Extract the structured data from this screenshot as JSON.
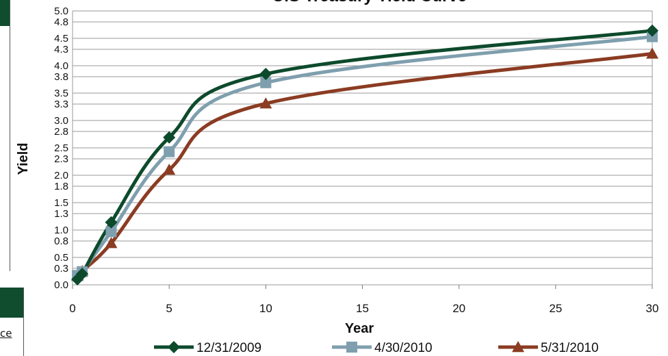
{
  "chart_data": {
    "type": "line",
    "title": "U.S Treasury Yield Curve",
    "xlabel": "Year",
    "ylabel": "Yield",
    "xlim": [
      0,
      30
    ],
    "ylim": [
      0.0,
      5.0
    ],
    "x_ticks": [
      0,
      5,
      10,
      15,
      20,
      25,
      30
    ],
    "y_ticks": [
      "0.0",
      "0.3",
      "0.5",
      "0.8",
      "1.0",
      "1.3",
      "1.5",
      "1.8",
      "2.0",
      "2.3",
      "2.5",
      "2.8",
      "3.0",
      "3.3",
      "3.5",
      "3.8",
      "4.0",
      "4.3",
      "4.5",
      "4.8",
      "5.0"
    ],
    "grid": "horizontal",
    "legend": "bottom",
    "series": [
      {
        "name": "12/31/2009",
        "color": "#0d4a2c",
        "marker": "diamond",
        "points": [
          [
            0.25,
            0.1
          ],
          [
            0.5,
            0.2
          ],
          [
            2,
            1.14
          ],
          [
            5,
            2.69
          ],
          [
            10,
            3.85
          ],
          [
            30,
            4.64
          ]
        ]
      },
      {
        "name": "4/30/2010",
        "color": "#7f9fae",
        "marker": "square",
        "points": [
          [
            0.25,
            0.17
          ],
          [
            0.5,
            0.24
          ],
          [
            2,
            0.97
          ],
          [
            5,
            2.43
          ],
          [
            10,
            3.69
          ],
          [
            30,
            4.53
          ]
        ]
      },
      {
        "name": "5/31/2010",
        "color": "#8b3c22",
        "marker": "triangle",
        "points": [
          [
            0.25,
            0.16
          ],
          [
            0.5,
            0.25
          ],
          [
            2,
            0.76
          ],
          [
            5,
            2.1
          ],
          [
            10,
            3.31
          ],
          [
            30,
            4.22
          ]
        ]
      }
    ]
  },
  "side_panel": {
    "fragment_text": "ce"
  }
}
